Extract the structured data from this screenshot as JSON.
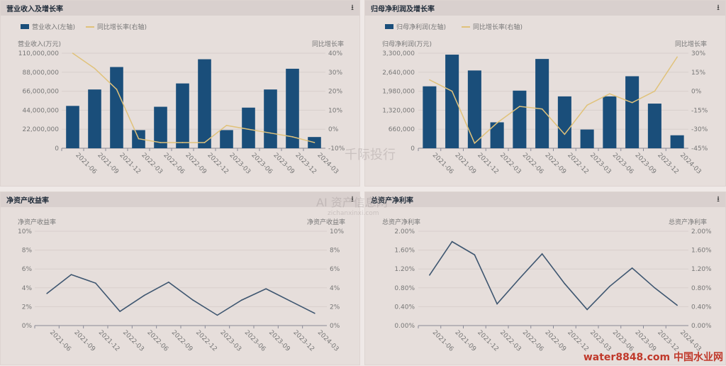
{
  "watermarks": {
    "qianji": "千际投行",
    "zichan": "AI 资产信息网",
    "zichan_url": "zichanxinxi.com",
    "water": "water8848.com 中国水业网"
  },
  "chart_data": [
    {
      "id": "revenue",
      "type": "bar+line",
      "title": "营业收入及增长率",
      "legend": [
        "营业收入(左轴)",
        "同比增长率(右轴)"
      ],
      "legend_placement": "top-left",
      "ylabel": "营业收入(万元)",
      "y2label": "同比增长率",
      "categories": [
        "2021-06",
        "2021-09",
        "2021-12",
        "2022-03",
        "2022-06",
        "2022-09",
        "2022-12",
        "2023-03",
        "2023-06",
        "2023-09",
        "2023-12",
        "2024-03"
      ],
      "bars": [
        49000000,
        68000000,
        94000000,
        21000000,
        48000000,
        75000000,
        103000000,
        21000000,
        47000000,
        68000000,
        92000000,
        13000000
      ],
      "line": [
        40,
        32,
        21,
        -5,
        -7,
        -7,
        -7,
        2,
        0,
        -2,
        -4,
        -7
      ],
      "ylim": [
        0,
        110000000
      ],
      "yticks": [
        "0",
        "22,000,000",
        "44,000,000",
        "66,000,000",
        "88,000,000",
        "110,000,000"
      ],
      "y2lim": [
        -10,
        40
      ],
      "y2ticks": [
        "-10%",
        "0%",
        "10%",
        "20%",
        "30%",
        "40%"
      ]
    },
    {
      "id": "profit",
      "type": "bar+line",
      "title": "归母净利润及增长率",
      "legend": [
        "归母净利润(左轴)",
        "同比增长率(右轴)"
      ],
      "legend_placement": "top-left",
      "ylabel": "归母净利润(万元)",
      "y2label": "同比增长率",
      "categories": [
        "2021-06",
        "2021-09",
        "2021-12",
        "2022-03",
        "2022-06",
        "2022-09",
        "2022-12",
        "2023-03",
        "2023-06",
        "2023-09",
        "2023-12",
        "2024-03"
      ],
      "bars": [
        2150000,
        3250000,
        2700000,
        900000,
        2000000,
        3100000,
        1800000,
        650000,
        1800000,
        2500000,
        1550000,
        450000
      ],
      "line": [
        9,
        0,
        -41,
        -25,
        -12,
        -14,
        -34,
        -11,
        -2,
        -9,
        0,
        27
      ],
      "ylim": [
        0,
        3300000
      ],
      "yticks": [
        "0",
        "660,000",
        "1,320,000",
        "1,980,000",
        "2,640,000",
        "3,300,000"
      ],
      "y2lim": [
        -45,
        30
      ],
      "y2ticks": [
        "-45%",
        "-30%",
        "-15%",
        "0%",
        "15%",
        "30%"
      ]
    },
    {
      "id": "roe",
      "type": "line",
      "title": "净资产收益率",
      "ylabel": "净资产收益率",
      "y2label": "净资产收益率",
      "categories": [
        "2021-06",
        "2021-09",
        "2021-12",
        "2022-03",
        "2022-06",
        "2022-09",
        "2022-12",
        "2023-03",
        "2023-06",
        "2023-09",
        "2023-12",
        "2024-03"
      ],
      "line": [
        3.4,
        5.4,
        4.5,
        1.5,
        3.2,
        4.6,
        2.7,
        1.1,
        2.7,
        3.9,
        2.6,
        1.3
      ],
      "ylim": [
        0,
        10
      ],
      "yticks": [
        "0%",
        "2%",
        "4%",
        "6%",
        "8%",
        "10%"
      ],
      "y2ticks": [
        "0%",
        "2%",
        "4%",
        "6%",
        "8%",
        "10%"
      ]
    },
    {
      "id": "roa",
      "type": "line",
      "title": "总资产净利率",
      "ylabel": "总资产净利率",
      "y2label": "总资产净利率",
      "categories": [
        "2021-06",
        "2021-09",
        "2021-12",
        "2022-03",
        "2022-06",
        "2022-09",
        "2022-12",
        "2023-03",
        "2023-06",
        "2023-09",
        "2023-12",
        "2024-03"
      ],
      "line": [
        1.07,
        1.78,
        1.5,
        0.46,
        1.0,
        1.52,
        0.89,
        0.34,
        0.83,
        1.22,
        0.8,
        0.43
      ],
      "ylim": [
        0,
        2
      ],
      "yticks": [
        "0.00%",
        "0.40%",
        "0.80%",
        "1.20%",
        "1.60%",
        "2.00%"
      ],
      "y2ticks": [
        "0.00%",
        "0.40%",
        "0.80%",
        "1.20%",
        "1.60%",
        "2.00%"
      ]
    }
  ],
  "colors": {
    "bar": "#1a4e7a",
    "growth_line": "#e0c27a",
    "ratio_line": "#3e5670",
    "grid": "#d8cfcc"
  },
  "download_icon": "⭳"
}
